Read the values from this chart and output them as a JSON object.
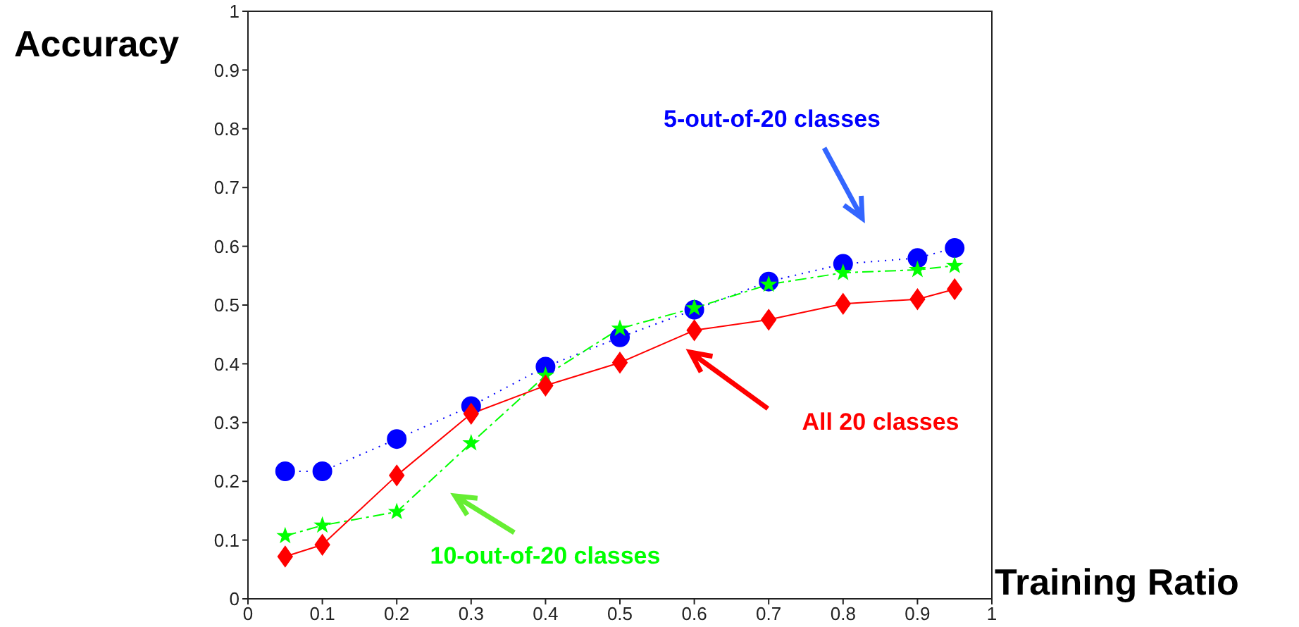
{
  "chart_data": {
    "type": "line",
    "xlabel": "Training Ratio",
    "ylabel": "Accuracy",
    "x": [
      0.05,
      0.1,
      0.2,
      0.3,
      0.4,
      0.5,
      0.6,
      0.7,
      0.8,
      0.9,
      0.95
    ],
    "xlim": [
      0,
      1
    ],
    "xticks": [
      0,
      0.1,
      0.2,
      0.3,
      0.4,
      0.5,
      0.6,
      0.7,
      0.8,
      0.9,
      1
    ],
    "ylim": [
      0,
      1
    ],
    "yticks": [
      0,
      0.1,
      0.2,
      0.3,
      0.4,
      0.5,
      0.6,
      0.7,
      0.8,
      0.9,
      1
    ],
    "grid": false,
    "legend": false,
    "series": [
      {
        "name": "5-out-of-20 classes",
        "color": "#0000ff",
        "marker": "circle",
        "line_style": "dotted",
        "values": [
          0.217,
          0.217,
          0.272,
          0.328,
          0.395,
          0.445,
          0.492,
          0.54,
          0.57,
          0.58,
          0.597
        ]
      },
      {
        "name": "10-out-of-20 classes",
        "color": "#00ff00",
        "marker": "star",
        "line_style": "dashed",
        "values": [
          0.107,
          0.125,
          0.148,
          0.265,
          0.38,
          0.46,
          0.495,
          0.535,
          0.555,
          0.56,
          0.567
        ]
      },
      {
        "name": "All 20 classes",
        "color": "#ff0000",
        "marker": "diamond",
        "line_style": "solid",
        "values": [
          0.072,
          0.092,
          0.21,
          0.315,
          0.363,
          0.402,
          0.457,
          0.475,
          0.502,
          0.51,
          0.527
        ]
      }
    ]
  }
}
